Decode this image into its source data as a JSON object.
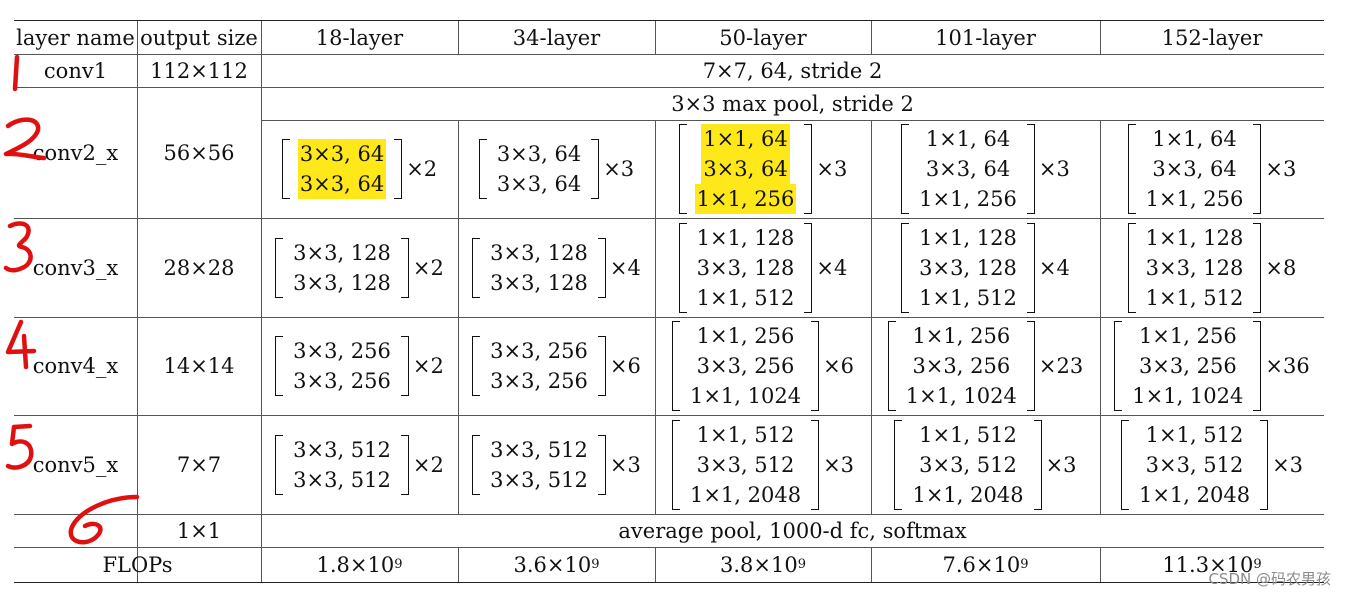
{
  "header": {
    "layer_name": "layer name",
    "output_size": "output size",
    "columns": [
      "18-layer",
      "34-layer",
      "50-layer",
      "101-layer",
      "152-layer"
    ]
  },
  "conv1": {
    "name": "conv1",
    "size": "112×112",
    "spec": "7×7, 64, stride 2"
  },
  "conv2": {
    "name": "conv2_x",
    "size": "56×56",
    "pool": "3×3 max pool, stride 2",
    "blocks": [
      {
        "lines": [
          "3×3, 64",
          "3×3, 64"
        ],
        "mult": "×2"
      },
      {
        "lines": [
          "3×3, 64",
          "3×3, 64"
        ],
        "mult": "×3"
      },
      {
        "lines": [
          "1×1, 64",
          "3×3, 64",
          "1×1, 256"
        ],
        "mult": "×3"
      },
      {
        "lines": [
          "1×1, 64",
          "3×3, 64",
          "1×1, 256"
        ],
        "mult": "×3"
      },
      {
        "lines": [
          "1×1, 64",
          "3×3, 64",
          "1×1, 256"
        ],
        "mult": "×3"
      }
    ]
  },
  "conv3": {
    "name": "conv3_x",
    "size": "28×28",
    "blocks": [
      {
        "lines": [
          "3×3, 128",
          "3×3, 128"
        ],
        "mult": "×2"
      },
      {
        "lines": [
          "3×3, 128",
          "3×3, 128"
        ],
        "mult": "×4"
      },
      {
        "lines": [
          "1×1, 128",
          "3×3, 128",
          "1×1, 512"
        ],
        "mult": "×4"
      },
      {
        "lines": [
          "1×1, 128",
          "3×3, 128",
          "1×1, 512"
        ],
        "mult": "×4"
      },
      {
        "lines": [
          "1×1, 128",
          "3×3, 128",
          "1×1, 512"
        ],
        "mult": "×8"
      }
    ]
  },
  "conv4": {
    "name": "conv4_x",
    "size": "14×14",
    "blocks": [
      {
        "lines": [
          "3×3, 256",
          "3×3, 256"
        ],
        "mult": "×2"
      },
      {
        "lines": [
          "3×3, 256",
          "3×3, 256"
        ],
        "mult": "×6"
      },
      {
        "lines": [
          "1×1, 256",
          "3×3, 256",
          "1×1, 1024"
        ],
        "mult": "×6"
      },
      {
        "lines": [
          "1×1, 256",
          "3×3, 256",
          "1×1, 1024"
        ],
        "mult": "×23"
      },
      {
        "lines": [
          "1×1, 256",
          "3×3, 256",
          "1×1, 1024"
        ],
        "mult": "×36"
      }
    ]
  },
  "conv5": {
    "name": "conv5_x",
    "size": "7×7",
    "blocks": [
      {
        "lines": [
          "3×3, 512",
          "3×3, 512"
        ],
        "mult": "×2"
      },
      {
        "lines": [
          "3×3, 512",
          "3×3, 512"
        ],
        "mult": "×3"
      },
      {
        "lines": [
          "1×1, 512",
          "3×3, 512",
          "1×1, 2048"
        ],
        "mult": "×3"
      },
      {
        "lines": [
          "1×1, 512",
          "3×3, 512",
          "1×1, 2048"
        ],
        "mult": "×3"
      },
      {
        "lines": [
          "1×1, 512",
          "3×3, 512",
          "1×1, 2048"
        ],
        "mult": "×3"
      }
    ]
  },
  "final": {
    "size": "1×1",
    "spec": "average pool, 1000-d fc, softmax"
  },
  "flops": {
    "label": "FLOPs",
    "values": [
      {
        "mantissa": "1.8×10",
        "exp": "9"
      },
      {
        "mantissa": "3.6×10",
        "exp": "9"
      },
      {
        "mantissa": "3.8×10",
        "exp": "9"
      },
      {
        "mantissa": "7.6×10",
        "exp": "9"
      },
      {
        "mantissa": "11.3×10",
        "exp": "9"
      }
    ]
  },
  "annotations": {
    "numbers": [
      "1",
      "2",
      "3",
      "4",
      "5",
      "6"
    ],
    "color": "#e01010"
  },
  "highlight_color": "#ffe81a",
  "watermark": "CSDN @码农男孩"
}
